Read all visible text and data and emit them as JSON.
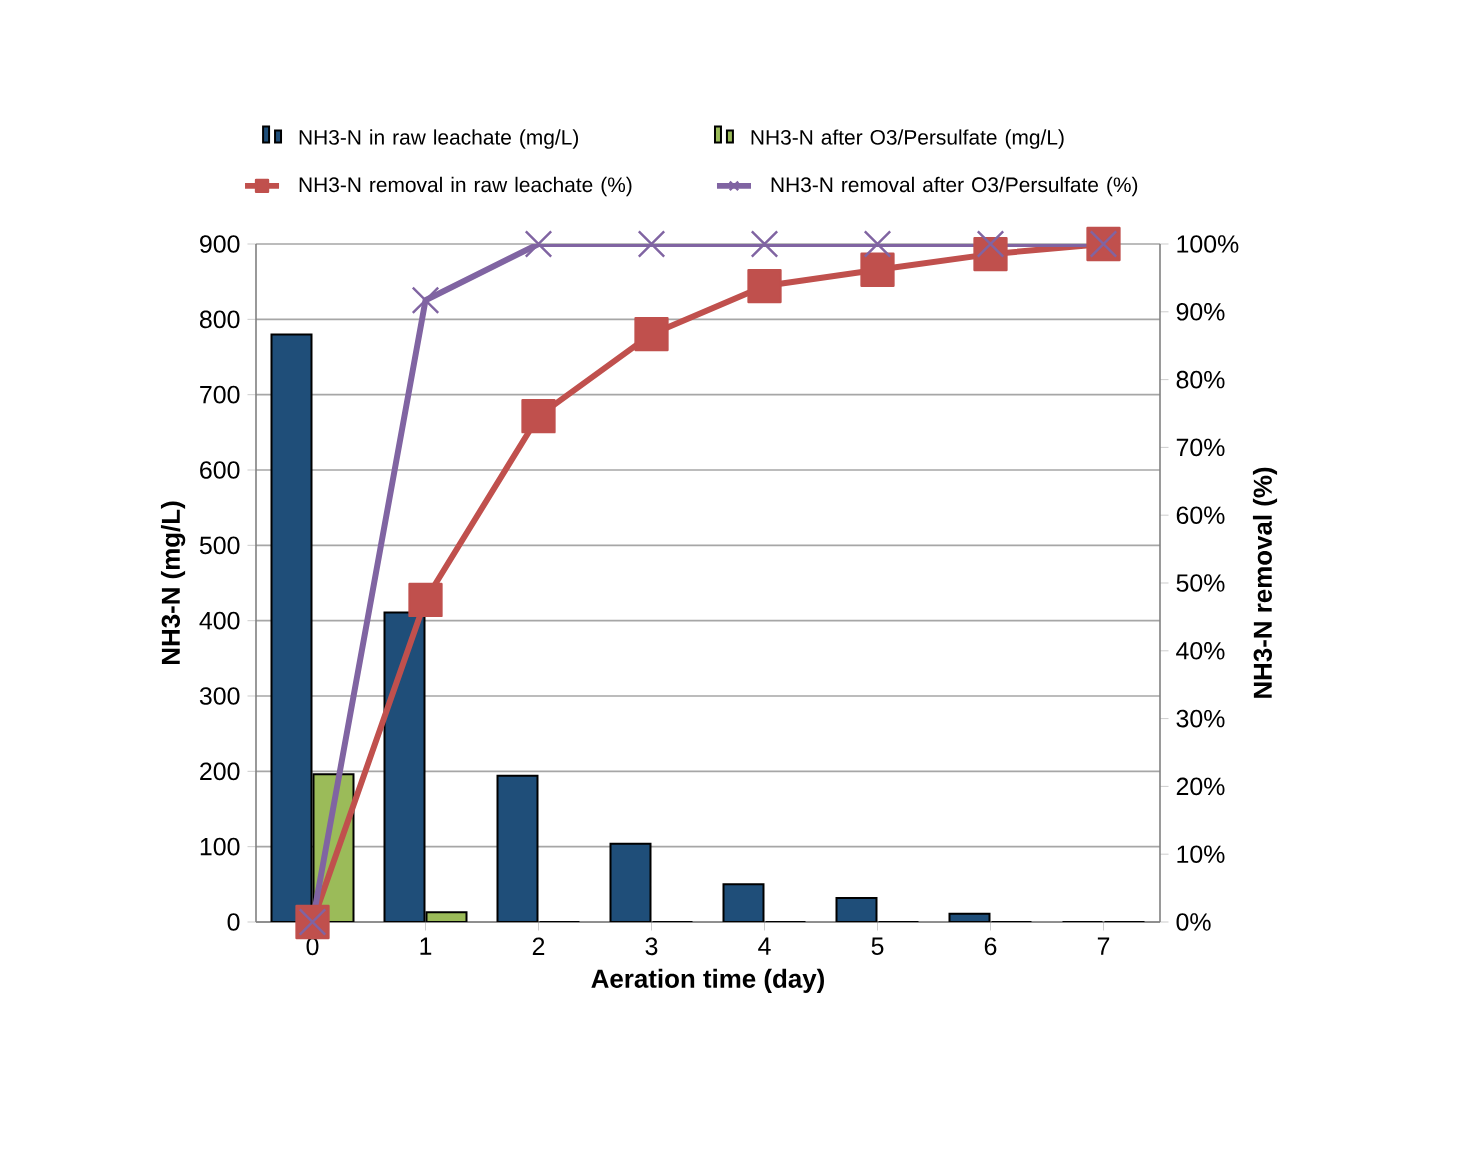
{
  "chart_data": {
    "type": "bar",
    "categories": [
      "0",
      "1",
      "2",
      "3",
      "4",
      "5",
      "6",
      "7"
    ],
    "xlabel": "Aeration time (day)",
    "ylabel": "NH3-N (mg/L)",
    "y2label": "NH3-N removal (%)",
    "ylim": [
      0,
      900
    ],
    "yticks": [
      0,
      100,
      200,
      300,
      400,
      500,
      600,
      700,
      800,
      900
    ],
    "y2lim": [
      0,
      100
    ],
    "y2ticks": [
      {
        "value": 0,
        "label": "0%"
      },
      {
        "value": 10,
        "label": "10%"
      },
      {
        "value": 20,
        "label": "20%"
      },
      {
        "value": 30,
        "label": "30%"
      },
      {
        "value": 40,
        "label": "40%"
      },
      {
        "value": 50,
        "label": "50%"
      },
      {
        "value": 60,
        "label": "60%"
      },
      {
        "value": 70,
        "label": "70%"
      },
      {
        "value": 80,
        "label": "80%"
      },
      {
        "value": 90,
        "label": "90%"
      },
      {
        "value": 100,
        "label": "100%"
      }
    ],
    "grid": "y",
    "legend": "top",
    "series": [
      {
        "name": "NH3-N in raw leachate (mg/L)",
        "color": "#1f4e79",
        "values": [
          780,
          411,
          194,
          104,
          50,
          32,
          11,
          0
        ]
      },
      {
        "name": "NH3-N after O3/Persulfate (mg/L)",
        "color": "#9bbb59",
        "values": [
          196,
          13,
          0,
          0,
          0,
          0,
          0,
          0
        ]
      },
      {
        "name": "NH3-N removal in raw leachate (%)",
        "type": "line",
        "axis": "y2",
        "color": "#c0504d",
        "marker": "square",
        "line_style": "solid",
        "values": [
          0,
          47.5,
          74.6,
          86.7,
          93.8,
          96.2,
          98.5,
          100
        ]
      },
      {
        "name": "NH3-N removal after O3/Persulfate (%)",
        "type": "line",
        "axis": "y2",
        "color": "#8064a2",
        "marker": "cross",
        "line_style": "solid",
        "values": [
          0,
          91.7,
          100,
          100,
          100,
          100,
          100,
          100
        ]
      }
    ]
  }
}
